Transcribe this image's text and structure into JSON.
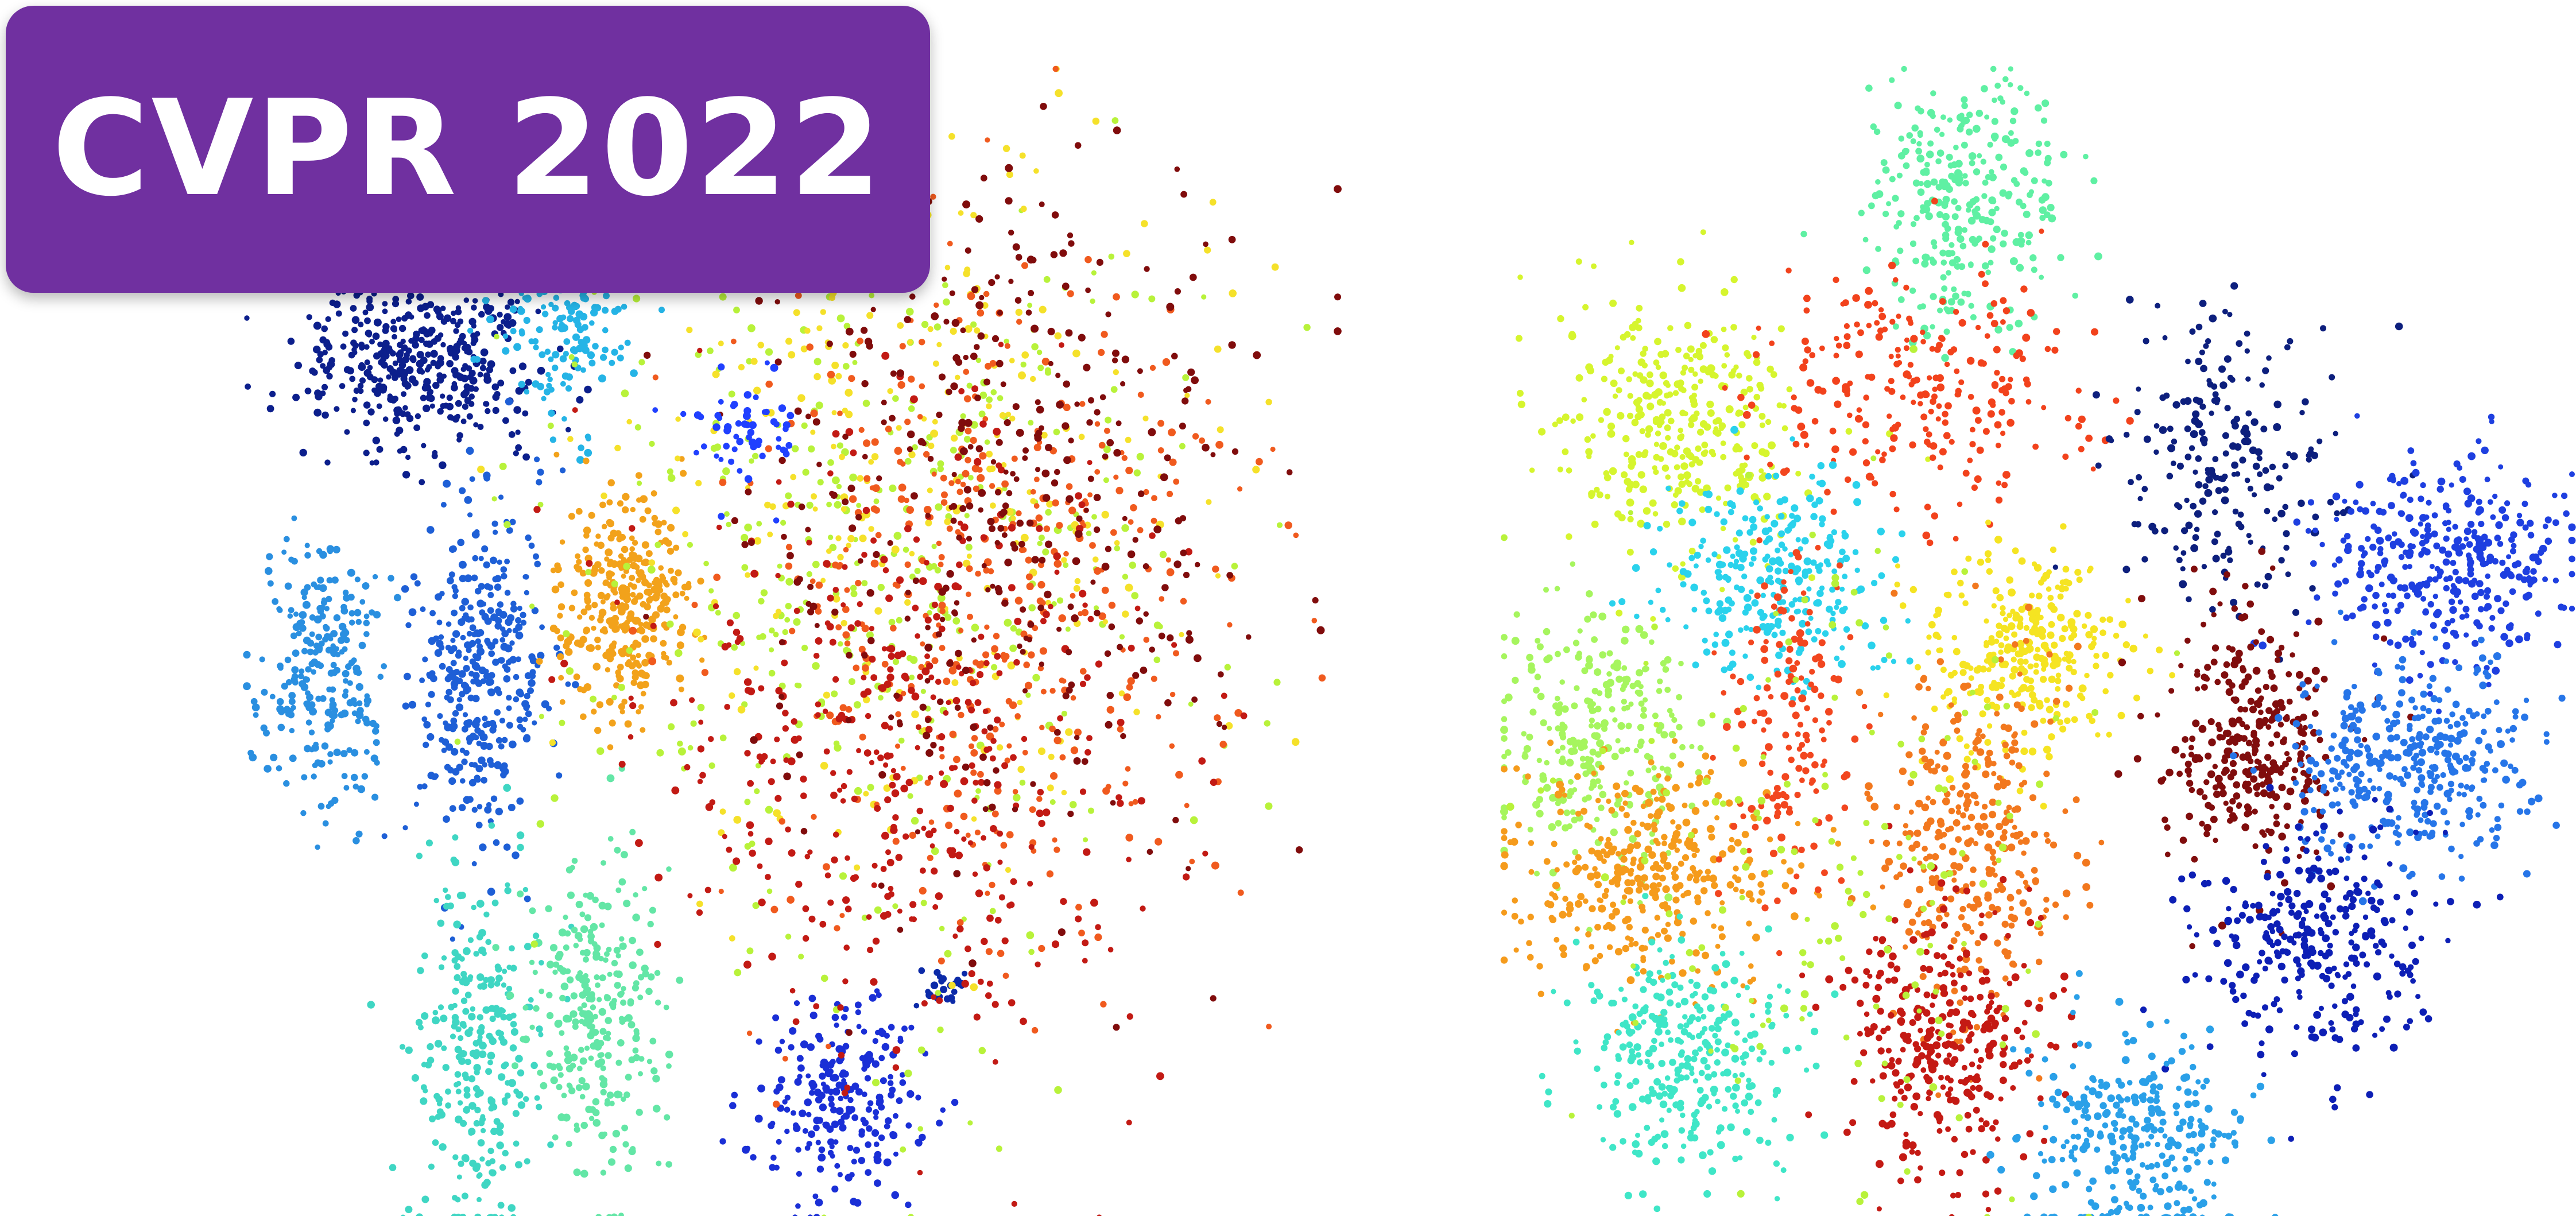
{
  "badge": {
    "text": "CVPR 2022",
    "color": "#7030a0"
  },
  "chart_data": [
    {
      "type": "scatter",
      "title": "",
      "xlabel": "",
      "ylabel": "",
      "grid": false,
      "axes_visible": false,
      "xlim": [
        0,
        1000
      ],
      "ylim": [
        0,
        1000
      ],
      "clusters": [
        {
          "color": "#0c1f8c",
          "center": [
            160,
            750
          ],
          "spread": [
            55,
            40
          ],
          "count": 420
        },
        {
          "color": "#25b4e6",
          "center": [
            285,
            810
          ],
          "spread": [
            30,
            55
          ],
          "count": 260
        },
        {
          "color": "#2a8fe0",
          "center": [
            70,
            480
          ],
          "spread": [
            30,
            60
          ],
          "count": 260
        },
        {
          "color": "#1e5fd6",
          "center": [
            215,
            470
          ],
          "spread": [
            30,
            75
          ],
          "count": 360
        },
        {
          "color": "#f2a21b",
          "center": [
            345,
            535
          ],
          "spread": [
            30,
            45
          ],
          "count": 330
        },
        {
          "color": "#3fd6c3",
          "center": [
            210,
            145
          ],
          "spread": [
            30,
            85
          ],
          "count": 280
        },
        {
          "color": "#63e6a6",
          "center": [
            320,
            170
          ],
          "spread": [
            32,
            70
          ],
          "count": 280
        },
        {
          "color": "#1a2fd6",
          "center": [
            545,
            100
          ],
          "spread": [
            35,
            40
          ],
          "count": 230
        },
        {
          "color": "#0c2aa8",
          "center": [
            640,
            200
          ],
          "spread": [
            10,
            10
          ],
          "count": 25
        },
        {
          "color": "#b8f23a",
          "center": [
            580,
            560
          ],
          "spread": [
            140,
            180
          ],
          "count": 420
        },
        {
          "color": "#f5e12a",
          "center": [
            620,
            640
          ],
          "spread": [
            130,
            150
          ],
          "count": 280
        },
        {
          "color": "#f05a1e",
          "center": [
            680,
            540
          ],
          "spread": [
            110,
            150
          ],
          "count": 420
        },
        {
          "color": "#c21a14",
          "center": [
            600,
            420
          ],
          "spread": [
            120,
            140
          ],
          "count": 420
        },
        {
          "color": "#800c0c",
          "center": [
            700,
            620
          ],
          "spread": [
            110,
            150
          ],
          "count": 380
        },
        {
          "color": "#2040ff",
          "center": [
            460,
            680
          ],
          "spread": [
            25,
            25
          ],
          "count": 60
        }
      ]
    },
    {
      "type": "scatter",
      "title": "",
      "xlabel": "",
      "ylabel": "",
      "grid": false,
      "axes_visible": false,
      "xlim": [
        0,
        1000
      ],
      "ylim": [
        0,
        1000
      ],
      "clusters": [
        {
          "color": "#5ff0a3",
          "center": [
            430,
            880
          ],
          "spread": [
            45,
            55
          ],
          "count": 300
        },
        {
          "color": "#d6f52e",
          "center": [
            170,
            690
          ],
          "spread": [
            60,
            55
          ],
          "count": 340
        },
        {
          "color": "#f2421c",
          "center": [
            390,
            720
          ],
          "spread": [
            70,
            50
          ],
          "count": 250
        },
        {
          "color": "#2ad2ec",
          "center": [
            250,
            560
          ],
          "spread": [
            55,
            45
          ],
          "count": 280
        },
        {
          "color": "#0d1f7d",
          "center": [
            680,
            660
          ],
          "spread": [
            50,
            60
          ],
          "count": 220
        },
        {
          "color": "#1e3fe0",
          "center": [
            880,
            570
          ],
          "spread": [
            55,
            45
          ],
          "count": 360
        },
        {
          "color": "#f5e422",
          "center": [
            490,
            490
          ],
          "spread": [
            45,
            45
          ],
          "count": 300
        },
        {
          "color": "#800d0d",
          "center": [
            695,
            410
          ],
          "spread": [
            40,
            55
          ],
          "count": 320
        },
        {
          "color": "#2675e8",
          "center": [
            850,
            400
          ],
          "spread": [
            55,
            45
          ],
          "count": 360
        },
        {
          "color": "#a6f55e",
          "center": [
            80,
            420
          ],
          "spread": [
            45,
            55
          ],
          "count": 280
        },
        {
          "color": "#f59b1c",
          "center": [
            135,
            300
          ],
          "spread": [
            70,
            45
          ],
          "count": 360
        },
        {
          "color": "#f2781e",
          "center": [
            440,
            330
          ],
          "spread": [
            45,
            75
          ],
          "count": 330
        },
        {
          "color": "#0d1fb5",
          "center": [
            755,
            240
          ],
          "spread": [
            55,
            50
          ],
          "count": 300
        },
        {
          "color": "#3fe6c7",
          "center": [
            170,
            140
          ],
          "spread": [
            55,
            50
          ],
          "count": 300
        },
        {
          "color": "#c41a14",
          "center": [
            410,
            160
          ],
          "spread": [
            45,
            60
          ],
          "count": 320
        },
        {
          "color": "#2aa0e8",
          "center": [
            595,
            70
          ],
          "spread": [
            50,
            45
          ],
          "count": 300
        },
        {
          "color": "#f2461f",
          "center": [
            270,
            430
          ],
          "spread": [
            30,
            80
          ],
          "count": 150
        },
        {
          "color": "#b8f23a",
          "center": [
            300,
            300
          ],
          "spread": [
            120,
            140
          ],
          "count": 160
        }
      ]
    }
  ]
}
